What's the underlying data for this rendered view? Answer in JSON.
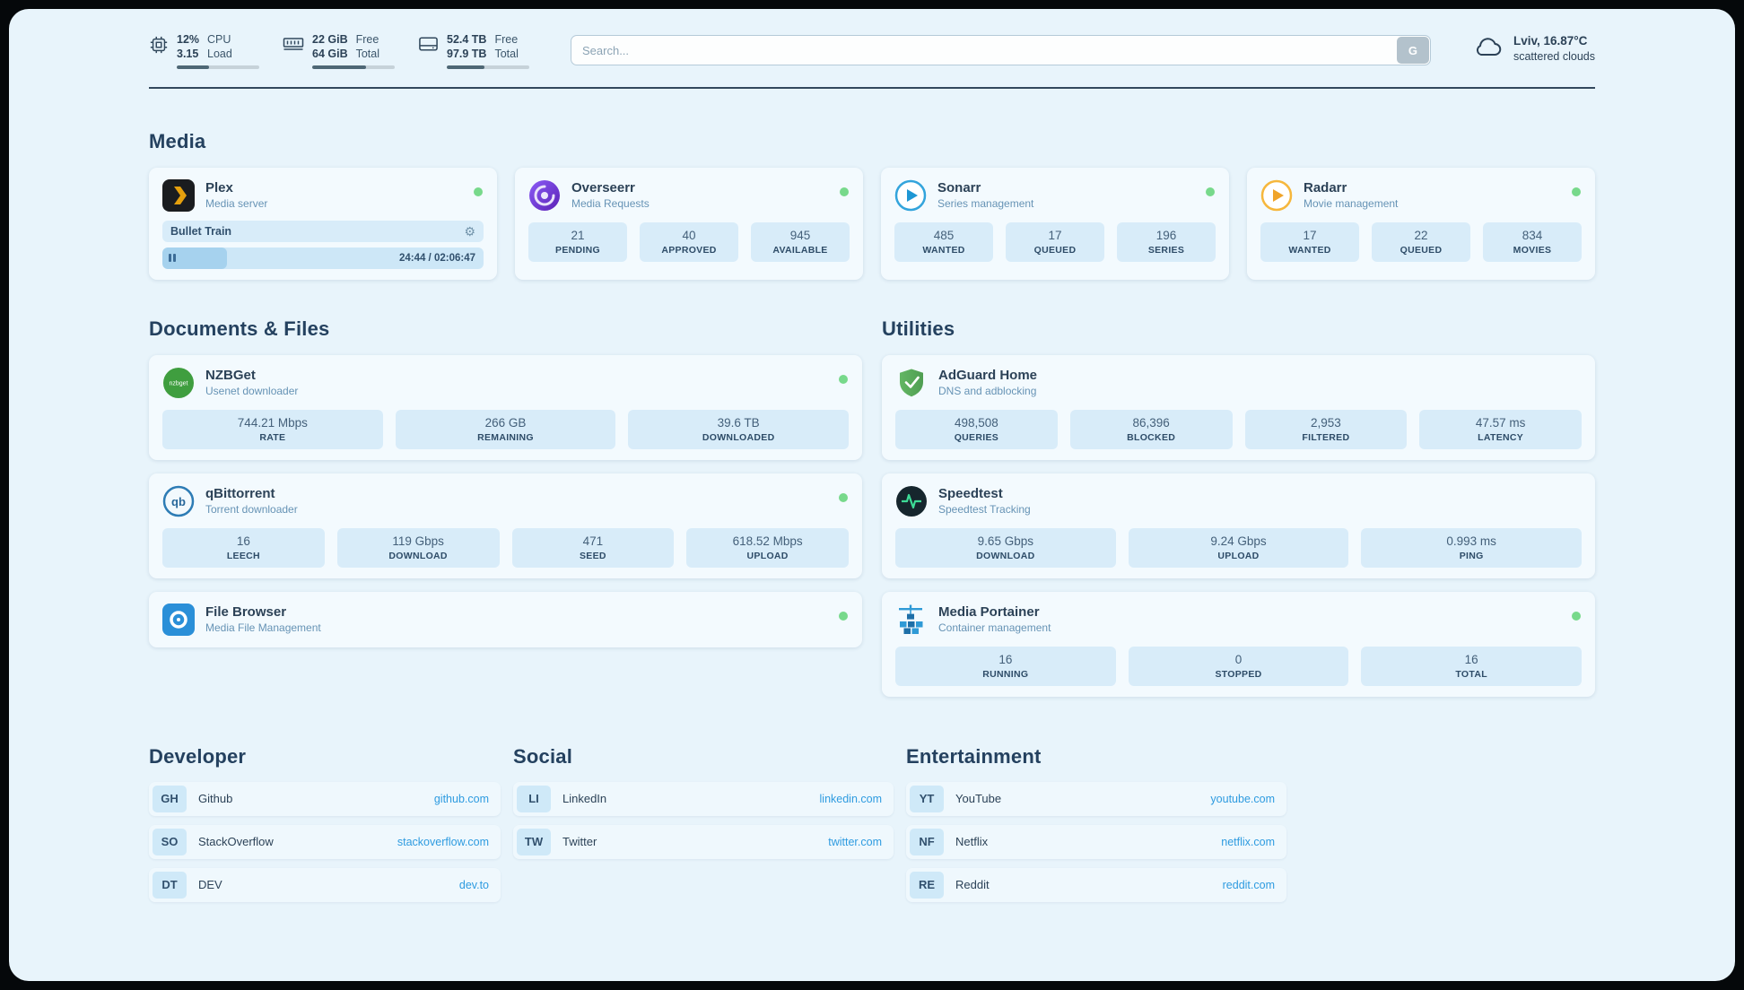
{
  "colors": {
    "page_bg": "#e8f4fb",
    "card_bg": "#f3fafe",
    "stat_bg": "#d8ecf9",
    "accent_blue": "#2e9be0",
    "status_green": "#77d98b",
    "text_dark": "#2c4257"
  },
  "topbar": {
    "cpu": {
      "value": "12%",
      "load": "3.15",
      "label_top": "CPU",
      "label_bottom": "Load",
      "progress_percent": 39
    },
    "ram": {
      "free": "22 GiB",
      "total": "64 GiB",
      "label_top": "Free",
      "label_bottom": "Total",
      "progress_percent": 65
    },
    "disk": {
      "free": "52.4 TB",
      "total": "97.9 TB",
      "label_top": "Free",
      "label_bottom": "Total",
      "progress_percent": 46
    },
    "search": {
      "placeholder": "Search...",
      "button_label": "G"
    },
    "weather": {
      "location": "Lviv, 16.87°C",
      "condition": "scattered clouds"
    }
  },
  "sections": {
    "media": {
      "title": "Media",
      "cards": [
        {
          "name": "Plex",
          "subtitle": "Media server",
          "online": true,
          "now_playing": {
            "title": "Bullet Train",
            "time": "24:44 / 02:06:47",
            "progress_percent": 20
          }
        },
        {
          "name": "Overseerr",
          "subtitle": "Media Requests",
          "online": true,
          "stats": [
            {
              "value": "21",
              "label": "PENDING"
            },
            {
              "value": "40",
              "label": "APPROVED"
            },
            {
              "value": "945",
              "label": "AVAILABLE"
            }
          ]
        },
        {
          "name": "Sonarr",
          "subtitle": "Series management",
          "online": true,
          "stats": [
            {
              "value": "485",
              "label": "WANTED"
            },
            {
              "value": "17",
              "label": "QUEUED"
            },
            {
              "value": "196",
              "label": "SERIES"
            }
          ]
        },
        {
          "name": "Radarr",
          "subtitle": "Movie management",
          "online": true,
          "stats": [
            {
              "value": "17",
              "label": "WANTED"
            },
            {
              "value": "22",
              "label": "QUEUED"
            },
            {
              "value": "834",
              "label": "MOVIES"
            }
          ]
        }
      ]
    },
    "documents": {
      "title": "Documents & Files",
      "cards": [
        {
          "name": "NZBGet",
          "subtitle": "Usenet downloader",
          "online": true,
          "icon_text": "nzbget",
          "stats": [
            {
              "value": "744.21 Mbps",
              "label": "RATE"
            },
            {
              "value": "266 GB",
              "label": "REMAINING"
            },
            {
              "value": "39.6 TB",
              "label": "DOWNLOADED"
            }
          ]
        },
        {
          "name": "qBittorrent",
          "subtitle": "Torrent downloader",
          "online": true,
          "icon_text": "qb",
          "stats": [
            {
              "value": "16",
              "label": "LEECH"
            },
            {
              "value": "119 Gbps",
              "label": "DOWNLOAD"
            },
            {
              "value": "471",
              "label": "SEED"
            },
            {
              "value": "618.52 Mbps",
              "label": "UPLOAD"
            }
          ]
        },
        {
          "name": "File Browser",
          "subtitle": "Media File Management",
          "online": true
        }
      ]
    },
    "utilities": {
      "title": "Utilities",
      "cards": [
        {
          "name": "AdGuard Home",
          "subtitle": "DNS and adblocking",
          "stats": [
            {
              "value": "498,508",
              "label": "QUERIES"
            },
            {
              "value": "86,396",
              "label": "BLOCKED"
            },
            {
              "value": "2,953",
              "label": "FILTERED"
            },
            {
              "value": "47.57 ms",
              "label": "LATENCY"
            }
          ]
        },
        {
          "name": "Speedtest",
          "subtitle": "Speedtest Tracking",
          "stats": [
            {
              "value": "9.65 Gbps",
              "label": "DOWNLOAD"
            },
            {
              "value": "9.24 Gbps",
              "label": "UPLOAD"
            },
            {
              "value": "0.993 ms",
              "label": "PING"
            }
          ]
        },
        {
          "name": "Media Portainer",
          "subtitle": "Container management",
          "online": true,
          "stats": [
            {
              "value": "16",
              "label": "RUNNING"
            },
            {
              "value": "0",
              "label": "STOPPED"
            },
            {
              "value": "16",
              "label": "TOTAL"
            }
          ]
        }
      ]
    },
    "link_groups": [
      {
        "title": "Developer",
        "items": [
          {
            "abbr": "GH",
            "name": "Github",
            "url": "github.com"
          },
          {
            "abbr": "SO",
            "name": "StackOverflow",
            "url": "stackoverflow.com"
          },
          {
            "abbr": "DT",
            "name": "DEV",
            "url": "dev.to"
          }
        ]
      },
      {
        "title": "Social",
        "items": [
          {
            "abbr": "LI",
            "name": "LinkedIn",
            "url": "linkedin.com"
          },
          {
            "abbr": "TW",
            "name": "Twitter",
            "url": "twitter.com"
          }
        ]
      },
      {
        "title": "Entertainment",
        "items": [
          {
            "abbr": "YT",
            "name": "YouTube",
            "url": "youtube.com"
          },
          {
            "abbr": "NF",
            "name": "Netflix",
            "url": "netflix.com"
          },
          {
            "abbr": "RE",
            "name": "Reddit",
            "url": "reddit.com"
          }
        ]
      }
    ]
  }
}
